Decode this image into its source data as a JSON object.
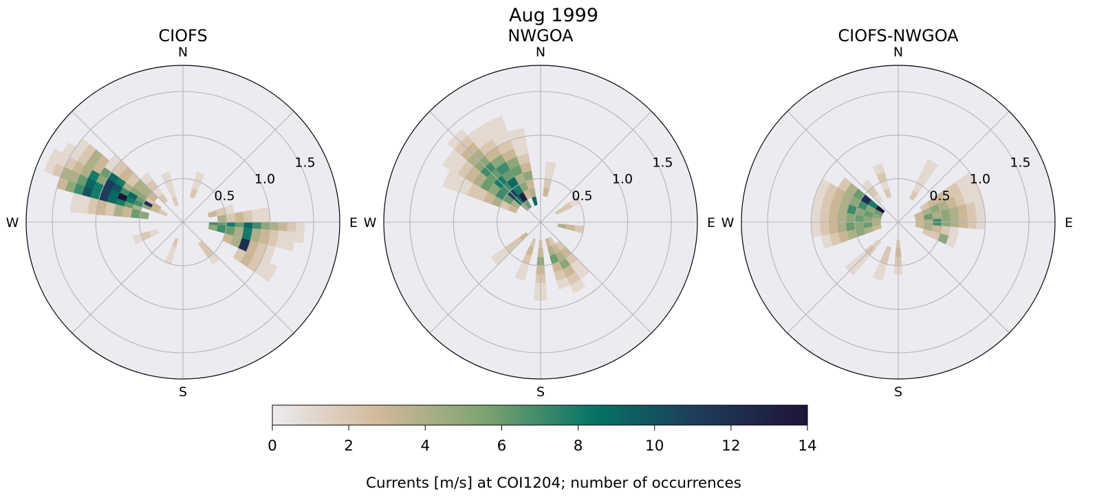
{
  "figure": {
    "suptitle": "Aug 1999",
    "colors": {
      "background": "#ffffff",
      "polar_face": "#ecebf2",
      "grid": "#b4b4b4",
      "outline": "#000000"
    }
  },
  "chart_data": [
    {
      "type": "polar-histogram",
      "title": "CIOFS",
      "compass_labels": [
        "N",
        "E",
        "S",
        "W"
      ],
      "r_ticks": [
        "0.5",
        "1.0",
        "1.5"
      ],
      "rlim": [
        0,
        1.8
      ],
      "direction_bins": 36,
      "speed_bin_width": 0.1,
      "wedges": [
        {
          "dir": 290,
          "r": [
            0.5,
            1.5
          ],
          "counts": [
            4,
            6,
            8,
            9,
            11,
            8,
            10,
            7,
            5,
            3
          ]
        },
        {
          "dir": 295,
          "r": [
            0.2,
            1.7
          ],
          "counts": [
            2,
            3,
            5,
            7,
            8,
            14,
            9,
            11,
            8,
            9,
            6,
            4,
            4,
            2,
            1
          ]
        },
        {
          "dir": 300,
          "r": [
            0.3,
            1.6
          ],
          "counts": [
            3,
            12,
            6,
            9,
            7,
            10,
            11,
            5,
            8,
            4,
            3,
            2,
            1
          ]
        },
        {
          "dir": 305,
          "r": [
            0.4,
            1.5
          ],
          "counts": [
            2,
            5,
            5,
            4,
            8,
            9,
            6,
            3,
            4,
            2,
            1
          ]
        },
        {
          "dir": 310,
          "r": [
            0.4,
            1.1
          ],
          "counts": [
            3,
            4,
            4,
            2,
            3,
            2,
            1
          ]
        },
        {
          "dir": 280,
          "r": [
            0.4,
            1.3
          ],
          "counts": [
            5,
            6,
            3,
            4,
            2,
            3,
            2,
            1,
            1
          ]
        },
        {
          "dir": 320,
          "r": [
            0.3,
            0.7
          ],
          "counts": [
            2,
            1,
            2,
            1
          ]
        },
        {
          "dir": 95,
          "r": [
            0.3,
            1.4
          ],
          "counts": [
            7,
            6,
            8,
            6,
            9,
            7,
            5,
            4,
            3,
            2,
            1
          ]
        },
        {
          "dir": 100,
          "r": [
            0.3,
            1.3
          ],
          "counts": [
            5,
            7,
            6,
            4,
            8,
            4,
            3,
            2,
            1,
            1
          ]
        },
        {
          "dir": 110,
          "r": [
            0.5,
            1.1
          ],
          "counts": [
            3,
            4,
            12,
            3,
            2,
            1
          ]
        },
        {
          "dir": 120,
          "r": [
            0.7,
            1.2
          ],
          "counts": [
            2,
            3,
            2,
            1,
            1
          ]
        },
        {
          "dir": 85,
          "r": [
            0.4,
            1.0
          ],
          "counts": [
            4,
            2,
            3,
            2,
            1,
            1
          ]
        },
        {
          "dir": 75,
          "r": [
            0.3,
            0.6
          ],
          "counts": [
            3,
            2,
            1
          ]
        },
        {
          "dir": 140,
          "r": [
            0.3,
            0.6
          ],
          "counts": [
            2,
            2,
            1
          ]
        },
        {
          "dir": 200,
          "r": [
            0.2,
            0.5
          ],
          "counts": [
            2,
            1,
            1
          ]
        },
        {
          "dir": 250,
          "r": [
            0.3,
            0.6
          ],
          "counts": [
            1,
            2,
            1
          ]
        },
        {
          "dir": 20,
          "r": [
            0.3,
            0.6
          ],
          "counts": [
            2,
            1,
            1
          ]
        },
        {
          "dir": 340,
          "r": [
            0.2,
            0.6
          ],
          "counts": [
            2,
            1,
            1,
            1
          ]
        }
      ]
    },
    {
      "type": "polar-histogram",
      "title": "NWGOA",
      "compass_labels": [
        "N",
        "E",
        "S",
        "W"
      ],
      "r_ticks": [
        "0.5",
        "1.0",
        "1.5"
      ],
      "rlim": [
        0,
        1.8
      ],
      "direction_bins": 36,
      "speed_bin_width": 0.1,
      "wedges": [
        {
          "dir": 315,
          "r": [
            0.2,
            1.4
          ],
          "counts": [
            5,
            9,
            11,
            7,
            8,
            6,
            7,
            5,
            4,
            3,
            2,
            1
          ]
        },
        {
          "dir": 325,
          "r": [
            0.2,
            1.3
          ],
          "counts": [
            6,
            13,
            8,
            9,
            6,
            7,
            5,
            3,
            2,
            1,
            1
          ]
        },
        {
          "dir": 305,
          "r": [
            0.3,
            1.3
          ],
          "counts": [
            4,
            6,
            7,
            5,
            6,
            4,
            3,
            2,
            1,
            1
          ]
        },
        {
          "dir": 335,
          "r": [
            0.3,
            1.3
          ],
          "counts": [
            3,
            5,
            4,
            6,
            5,
            3,
            2,
            1,
            1,
            1
          ]
        },
        {
          "dir": 295,
          "r": [
            0.3,
            1.2
          ],
          "counts": [
            3,
            2,
            4,
            3,
            2,
            2,
            1,
            1,
            1
          ]
        },
        {
          "dir": 345,
          "r": [
            0.2,
            1.1
          ],
          "counts": [
            9,
            4,
            3,
            5,
            3,
            2,
            1,
            1,
            1
          ]
        },
        {
          "dir": 150,
          "r": [
            0.2,
            0.9
          ],
          "counts": [
            2,
            3,
            4,
            5,
            3,
            2,
            1
          ]
        },
        {
          "dir": 160,
          "r": [
            0.2,
            0.8
          ],
          "counts": [
            3,
            4,
            6,
            3,
            2,
            1
          ]
        },
        {
          "dir": 180,
          "r": [
            0.2,
            0.9
          ],
          "counts": [
            2,
            3,
            5,
            3,
            2,
            1,
            1
          ]
        },
        {
          "dir": 140,
          "r": [
            0.3,
            0.8
          ],
          "counts": [
            2,
            3,
            2,
            1,
            1
          ]
        },
        {
          "dir": 200,
          "r": [
            0.2,
            0.7
          ],
          "counts": [
            2,
            3,
            2,
            1,
            1
          ]
        },
        {
          "dir": 230,
          "r": [
            0.2,
            0.7
          ],
          "counts": [
            3,
            2,
            2,
            1,
            1
          ]
        },
        {
          "dir": 100,
          "r": [
            0.2,
            0.5
          ],
          "counts": [
            4,
            3,
            2
          ]
        },
        {
          "dir": 60,
          "r": [
            0.2,
            0.5
          ],
          "counts": [
            2,
            2,
            1
          ]
        },
        {
          "dir": 10,
          "r": [
            0.3,
            0.7
          ],
          "counts": [
            3,
            2,
            1,
            1
          ]
        }
      ]
    },
    {
      "type": "polar-histogram",
      "title": "CIOFS-NWGOA",
      "compass_labels": [
        "N",
        "E",
        "S",
        "W"
      ],
      "r_ticks": [
        "0.5",
        "1.0",
        "1.5"
      ],
      "rlim": [
        0,
        1.8
      ],
      "direction_bins": 36,
      "speed_bin_width": 0.1,
      "wedges": [
        {
          "dir": 305,
          "r": [
            0.2,
            0.8
          ],
          "counts": [
            14,
            8,
            12,
            6,
            4,
            2
          ]
        },
        {
          "dir": 295,
          "r": [
            0.2,
            1.0
          ],
          "counts": [
            6,
            5,
            7,
            5,
            4,
            3,
            2,
            1
          ]
        },
        {
          "dir": 285,
          "r": [
            0.2,
            1.0
          ],
          "counts": [
            5,
            6,
            5,
            7,
            4,
            3,
            2,
            1
          ]
        },
        {
          "dir": 275,
          "r": [
            0.2,
            1.0
          ],
          "counts": [
            4,
            5,
            6,
            5,
            4,
            3,
            2,
            1
          ]
        },
        {
          "dir": 265,
          "r": [
            0.2,
            1.0
          ],
          "counts": [
            4,
            6,
            5,
            6,
            4,
            3,
            2,
            1
          ]
        },
        {
          "dir": 255,
          "r": [
            0.2,
            0.9
          ],
          "counts": [
            3,
            4,
            5,
            4,
            3,
            2,
            1
          ]
        },
        {
          "dir": 80,
          "r": [
            0.2,
            1.0
          ],
          "counts": [
            3,
            6,
            4,
            5,
            4,
            3,
            2,
            1
          ]
        },
        {
          "dir": 70,
          "r": [
            0.2,
            1.0
          ],
          "counts": [
            3,
            4,
            5,
            4,
            3,
            2,
            1,
            1
          ]
        },
        {
          "dir": 90,
          "r": [
            0.2,
            1.0
          ],
          "counts": [
            3,
            4,
            7,
            5,
            4,
            3,
            2,
            1
          ]
        },
        {
          "dir": 100,
          "r": [
            0.2,
            0.7
          ],
          "counts": [
            3,
            4,
            3,
            2,
            1
          ]
        },
        {
          "dir": 60,
          "r": [
            0.3,
            1.0
          ],
          "counts": [
            2,
            3,
            3,
            2,
            2,
            1,
            1
          ]
        },
        {
          "dir": 110,
          "r": [
            0.3,
            0.7
          ],
          "counts": [
            2,
            2,
            5,
            1
          ]
        },
        {
          "dir": 200,
          "r": [
            0.3,
            0.7
          ],
          "counts": [
            2,
            2,
            1,
            1
          ]
        },
        {
          "dir": 180,
          "r": [
            0.2,
            0.6
          ],
          "counts": [
            2,
            3,
            2,
            1
          ]
        },
        {
          "dir": 225,
          "r": [
            0.3,
            0.8
          ],
          "counts": [
            1,
            2,
            1,
            1,
            1
          ]
        },
        {
          "dir": 30,
          "r": [
            0.3,
            0.8
          ],
          "counts": [
            2,
            1,
            1,
            1,
            1
          ]
        },
        {
          "dir": 340,
          "r": [
            0.3,
            0.7
          ],
          "counts": [
            2,
            1,
            2,
            1
          ]
        },
        {
          "dir": 320,
          "r": [
            0.3,
            0.6
          ],
          "counts": [
            1,
            2,
            1
          ]
        }
      ]
    }
  ],
  "colorbar": {
    "label": "Currents [m/s] at COI1204; number of occurrences",
    "min": 0,
    "max": 14,
    "ticks": [
      "0",
      "2",
      "4",
      "6",
      "8",
      "10",
      "12",
      "14"
    ],
    "colormap": [
      "#edebef",
      "#d1b999",
      "#7ca271",
      "#047465",
      "#1e3a5a",
      "#1e1538"
    ]
  }
}
